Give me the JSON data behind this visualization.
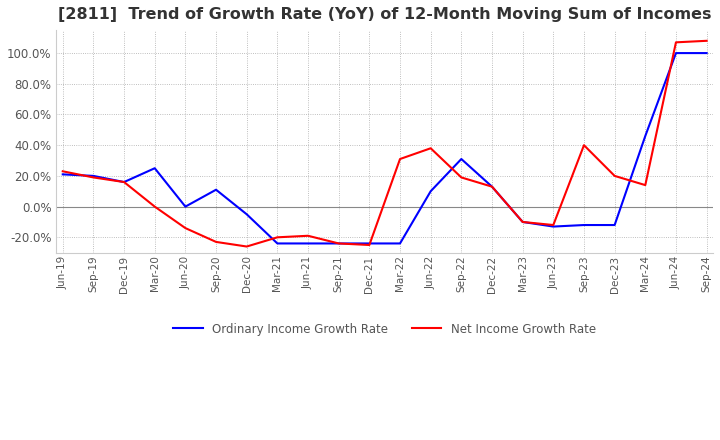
{
  "title": "[2811]  Trend of Growth Rate (YoY) of 12-Month Moving Sum of Incomes",
  "title_fontsize": 11.5,
  "background_color": "#ffffff",
  "grid_color": "#aaaaaa",
  "x_labels": [
    "Jun-19",
    "Sep-19",
    "Dec-19",
    "Mar-20",
    "Jun-20",
    "Sep-20",
    "Dec-20",
    "Mar-21",
    "Jun-21",
    "Sep-21",
    "Dec-21",
    "Mar-22",
    "Jun-22",
    "Sep-22",
    "Dec-22",
    "Mar-23",
    "Jun-23",
    "Sep-23",
    "Dec-23",
    "Mar-24",
    "Jun-24",
    "Sep-24"
  ],
  "ordinary_income": [
    21.0,
    20.0,
    16.0,
    25.0,
    0.0,
    11.0,
    -5.0,
    -24.0,
    -24.0,
    -24.0,
    -24.0,
    -24.0,
    10.0,
    31.0,
    13.0,
    -10.0,
    -13.0,
    -12.0,
    -12.0,
    46.0,
    100.0,
    100.0
  ],
  "net_income": [
    23.0,
    19.0,
    16.0,
    0.0,
    -14.0,
    -23.0,
    -26.0,
    -20.0,
    -19.0,
    -24.0,
    -25.0,
    31.0,
    38.0,
    19.0,
    13.0,
    -10.0,
    -12.0,
    40.0,
    20.0,
    14.0,
    107.0,
    108.0
  ],
  "ordinary_color": "#0000ff",
  "net_color": "#ff0000",
  "ylim": [
    -30,
    115
  ],
  "yticks": [
    -20.0,
    0.0,
    20.0,
    40.0,
    60.0,
    80.0,
    100.0
  ],
  "legend_labels": [
    "Ordinary Income Growth Rate",
    "Net Income Growth Rate"
  ]
}
